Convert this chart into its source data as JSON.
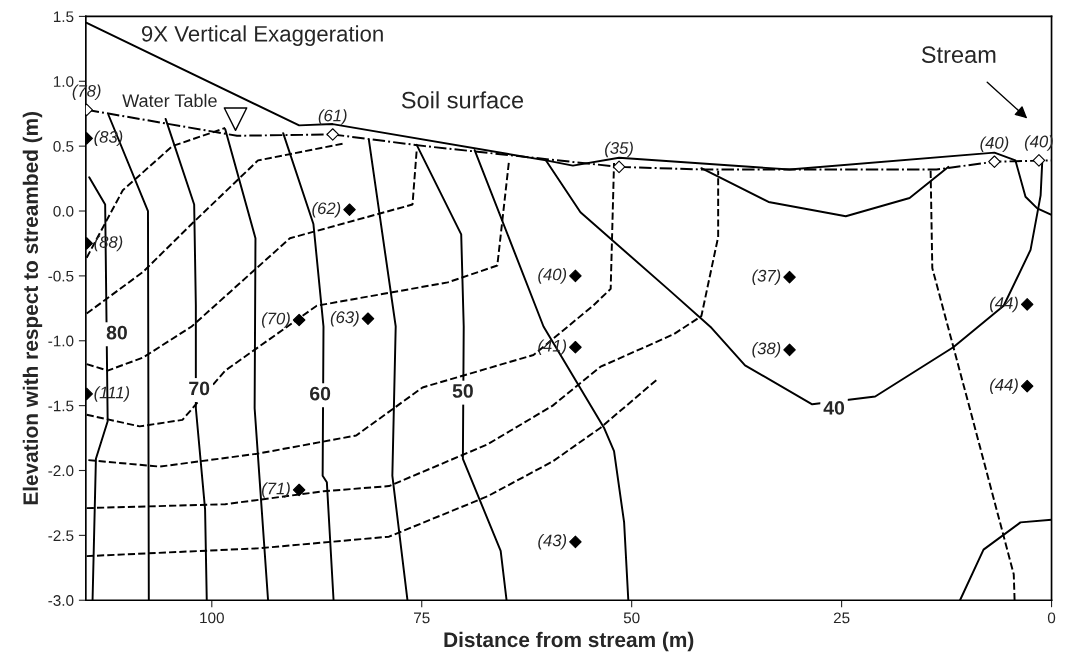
{
  "chart_data": {
    "type": "line",
    "xlabel": "Distance from stream (m)",
    "ylabel": "Elevation with respect to streambed (m)",
    "xlim": [
      115,
      0
    ],
    "xticks": [
      100,
      75,
      50,
      25,
      0
    ],
    "ylim": [
      -3.0,
      1.5
    ],
    "yticks": [
      1.5,
      {
        "value": 1,
        "label": "1.0"
      },
      0.5,
      {
        "value": 0,
        "label": "0.0"
      },
      -0.5,
      {
        "value": -1,
        "label": "-1.0"
      },
      -1.5,
      {
        "value": -2,
        "label": "-2.0"
      },
      -2.5,
      {
        "value": -3,
        "label": "-3.0"
      }
    ],
    "grid": false,
    "legend": false,
    "annotations": [
      "9X Vertical Exaggeration",
      "Water Table",
      "Soil surface",
      "Stream",
      {
        "text": "80",
        "x": 111.3,
        "y": -0.95
      },
      {
        "text": "70",
        "x": 101.5,
        "y": -1.38
      },
      {
        "text": "60",
        "x": 87.1,
        "y": -1.42
      },
      {
        "text": "50",
        "x": 70.1,
        "y": -1.4
      },
      {
        "text": "40",
        "x": 25.9,
        "y": -1.53
      },
      {
        "text": "(83)",
        "x": 114.9,
        "y": 0.56
      },
      {
        "text": "(88)",
        "x": 114.9,
        "y": -0.25
      },
      {
        "text": "(111)",
        "x": 114.9,
        "y": -1.41
      },
      {
        "text": "(62)",
        "x": 83.6,
        "y": 0.01
      },
      {
        "text": "(70)",
        "x": 89.6,
        "y": -0.84
      },
      {
        "text": "(63)",
        "x": 81.4,
        "y": -0.83
      },
      {
        "text": "(71)",
        "x": 89.6,
        "y": -2.15
      },
      {
        "text": "(40)",
        "x": 56.7,
        "y": -0.5
      },
      {
        "text": "(37)",
        "x": 31.2,
        "y": -0.51
      },
      {
        "text": "(41)",
        "x": 56.7,
        "y": -1.05
      },
      {
        "text": "(38)",
        "x": 31.2,
        "y": -1.07
      },
      {
        "text": "(43)",
        "x": 56.7,
        "y": -2.55
      },
      {
        "text": "(44)",
        "x": 2.9,
        "y": -0.72
      },
      {
        "text": "(44)",
        "x": 2.9,
        "y": -1.35
      },
      {
        "text": "(78)",
        "x": 114.9,
        "y": 0.78
      },
      {
        "text": "(61)",
        "x": 85.6,
        "y": 0.59
      },
      {
        "text": "(35)",
        "x": 51.5,
        "y": 0.34
      },
      {
        "text": "(40)",
        "x": 6.8,
        "y": 0.38
      },
      {
        "text": "(40)",
        "x": 1.5,
        "y": 0.39
      }
    ],
    "series": [
      {
        "color": "#000000",
        "line_style": "solid",
        "marker": "none",
        "x": [
          114.9,
          89.6,
          85.6,
          60.2,
          57,
          51.5,
          31.2,
          6.8,
          4.3,
          3.1,
          1.7,
          0
        ],
        "values": [
          1.45,
          0.66,
          0.67,
          0.39,
          0.35,
          0.41,
          0.32,
          0.45,
          0.39,
          0.11,
          0.02,
          -0.03
        ]
      },
      {
        "color": "#000000",
        "line_style": "dashdot",
        "marker": "none",
        "x": [
          114.9,
          97,
          85.6,
          74.6,
          51.5,
          41.7,
          13.7,
          6.8,
          0
        ],
        "values": [
          0.78,
          0.58,
          0.59,
          0.5,
          0.34,
          0.32,
          0.32,
          0.38,
          0.39
        ]
      },
      {
        "color": "#000000",
        "line_style": "solid",
        "marker": "none",
        "x": [
          114.6,
          112.7,
          112.4,
          113.8,
          114.2
        ],
        "values": [
          0.26,
          0.05,
          -1.62,
          -1.91,
          -3.0
        ]
      },
      {
        "color": "#000000",
        "line_style": "solid",
        "marker": "none",
        "x": [
          105.5,
          102.1,
          101.9,
          101.9,
          100.8,
          100.6
        ],
        "values": [
          0.71,
          0.05,
          -0.73,
          -1.52,
          -2.3,
          -3.0
        ]
      },
      {
        "color": "#000000",
        "line_style": "solid",
        "marker": "none",
        "x": [
          91.5,
          87.9,
          86.7,
          86.8,
          86.3,
          85.5
        ],
        "values": [
          0.6,
          -0.1,
          -0.89,
          -2.04,
          -2.09,
          -3.0
        ]
      },
      {
        "color": "#000000",
        "line_style": "solid",
        "marker": "none",
        "x": [
          75.6,
          70.3,
          70.0,
          70.1,
          65.6,
          64.9
        ],
        "values": [
          0.51,
          -0.18,
          -0.89,
          -1.91,
          -2.62,
          -3.0
        ]
      },
      {
        "color": "#000000",
        "line_style": "solid",
        "marker": "none",
        "x": [
          60.2,
          56.1,
          45.7,
          40.5,
          36.5,
          28.5,
          21.0,
          11.7,
          5.7,
          2.5,
          1.3,
          1.1
        ],
        "values": [
          0.39,
          -0.01,
          -0.6,
          -0.9,
          -1.19,
          -1.49,
          -1.43,
          -1.05,
          -0.73,
          -0.3,
          0.12,
          0.39
        ]
      },
      {
        "color": "#000000",
        "line_style": "solid",
        "marker": "none",
        "x": [
          112.3,
          107.6,
          107.5
        ],
        "values": [
          0.74,
          0.0,
          -3.0
        ]
      },
      {
        "color": "#000000",
        "line_style": "solid",
        "marker": "none",
        "x": [
          98.4,
          94.8,
          94.9,
          93.3
        ],
        "values": [
          0.63,
          -0.21,
          -1.52,
          -3.0
        ]
      },
      {
        "color": "#000000",
        "line_style": "solid",
        "marker": "none",
        "x": [
          81.3,
          78.1,
          78.5,
          76.7
        ],
        "values": [
          0.55,
          -0.89,
          -2.04,
          -3.0
        ]
      },
      {
        "color": "#000000",
        "line_style": "solid",
        "marker": "none",
        "x": [
          68.7,
          60.5,
          53.3,
          52.1,
          50.9,
          50.4
        ],
        "values": [
          0.47,
          -0.89,
          -1.67,
          -1.85,
          -2.4,
          -3.0
        ]
      },
      {
        "color": "#000000",
        "line_style": "solid",
        "marker": "none",
        "x": [
          41.7,
          33.7,
          24.5,
          16.9,
          12.3
        ],
        "values": [
          0.33,
          0.07,
          -0.04,
          0.1,
          0.34
        ]
      },
      {
        "color": "#000000",
        "line_style": "solid",
        "marker": "none",
        "x": [
          10.9,
          8.1,
          3.7,
          0
        ],
        "values": [
          -3.0,
          -2.61,
          -2.4,
          -2.38
        ]
      },
      {
        "color": "#000000",
        "line_style": "dashed",
        "marker": "none",
        "x": [
          114.9,
          110.6,
          104.7,
          98.4
        ],
        "values": [
          -0.36,
          0.16,
          0.5,
          0.64
        ]
      },
      {
        "color": "#000000",
        "line_style": "dashed",
        "marker": "none",
        "x": [
          114.9,
          108.2,
          102.4,
          94.5,
          84.3
        ],
        "values": [
          -0.79,
          -0.47,
          -0.1,
          0.39,
          0.52
        ]
      },
      {
        "color": "#000000",
        "line_style": "dashed",
        "marker": "none",
        "x": [
          114.9,
          112.4,
          108.2,
          102.4,
          90.7,
          76.1,
          75.6
        ],
        "values": [
          -1.18,
          -1.23,
          -1.13,
          -0.89,
          -0.21,
          0.05,
          0.47
        ]
      },
      {
        "color": "#000000",
        "line_style": "dashed",
        "marker": "none",
        "x": [
          114.9,
          108.6,
          103.5,
          98.4,
          87.5,
          71.9,
          66.0,
          64.6
        ],
        "values": [
          -1.57,
          -1.66,
          -1.61,
          -1.23,
          -0.73,
          -0.55,
          -0.42,
          0.39
        ]
      },
      {
        "color": "#000000",
        "line_style": "dashed",
        "marker": "none",
        "x": [
          114.7,
          106.2,
          94.5,
          82.8,
          74.9,
          61.7,
          54.6,
          52.5,
          52.1
        ],
        "values": [
          -1.92,
          -1.97,
          -1.87,
          -1.73,
          -1.36,
          -1.11,
          -0.73,
          -0.6,
          0.37
        ]
      },
      {
        "color": "#000000",
        "line_style": "dashed",
        "marker": "none",
        "x": [
          114.9,
          98.4,
          86.7,
          78.9,
          67.2,
          59.4,
          53.7,
          45.0,
          41.7,
          39.7,
          39.7
        ],
        "values": [
          -2.29,
          -2.26,
          -2.16,
          -2.12,
          -1.8,
          -1.5,
          -1.2,
          -0.95,
          -0.81,
          -0.2,
          0.31
        ]
      },
      {
        "color": "#000000",
        "line_style": "dashed",
        "marker": "none",
        "x": [
          114.9,
          94.5,
          78.9,
          67.2,
          59.4,
          53.7,
          47.0
        ],
        "values": [
          -2.66,
          -2.6,
          -2.51,
          -2.2,
          -1.93,
          -1.67,
          -1.3
        ]
      },
      {
        "color": "#000000",
        "line_style": "dashed",
        "marker": "none",
        "x": [
          14.4,
          14.2,
          9.7,
          4.5,
          4.4
        ],
        "values": [
          0.31,
          -0.44,
          -1.53,
          -2.8,
          -3.0
        ]
      },
      {
        "type": "scatter",
        "color": "#000000",
        "marker": "diamond",
        "x": [
          114.9,
          114.9,
          114.9,
          83.6,
          89.6,
          81.4,
          89.6,
          56.7,
          31.2,
          56.7,
          31.2,
          56.7,
          2.9,
          2.9
        ],
        "values": [
          0.56,
          -0.25,
          -1.41,
          0.01,
          -0.84,
          -0.83,
          -2.15,
          -0.5,
          -0.51,
          -1.05,
          -1.07,
          -2.55,
          -0.72,
          -1.35
        ]
      },
      {
        "type": "scatter",
        "color": "#ffffff",
        "marker": "diamond",
        "x": [
          114.9,
          85.6,
          51.5,
          6.8,
          1.5
        ],
        "values": [
          0.78,
          0.59,
          0.34,
          0.38,
          0.39
        ]
      }
    ]
  }
}
